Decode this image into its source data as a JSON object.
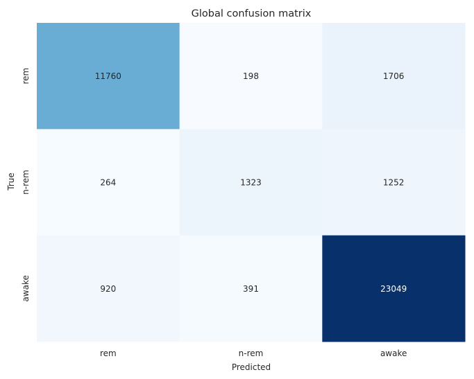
{
  "chart_data": {
    "type": "heatmap",
    "title": "Global confusion matrix",
    "xlabel": "Predicted",
    "ylabel": "True",
    "x_categories": [
      "rem",
      "n-rem",
      "awake"
    ],
    "y_categories": [
      "rem",
      "n-rem",
      "awake"
    ],
    "values": [
      [
        11760,
        198,
        1706
      ],
      [
        264,
        1323,
        1252
      ],
      [
        920,
        391,
        23049
      ]
    ],
    "colormap": "Blues",
    "color_low": "#f7fbff",
    "color_high": "#08306b",
    "colorbar": false,
    "grid": false
  }
}
